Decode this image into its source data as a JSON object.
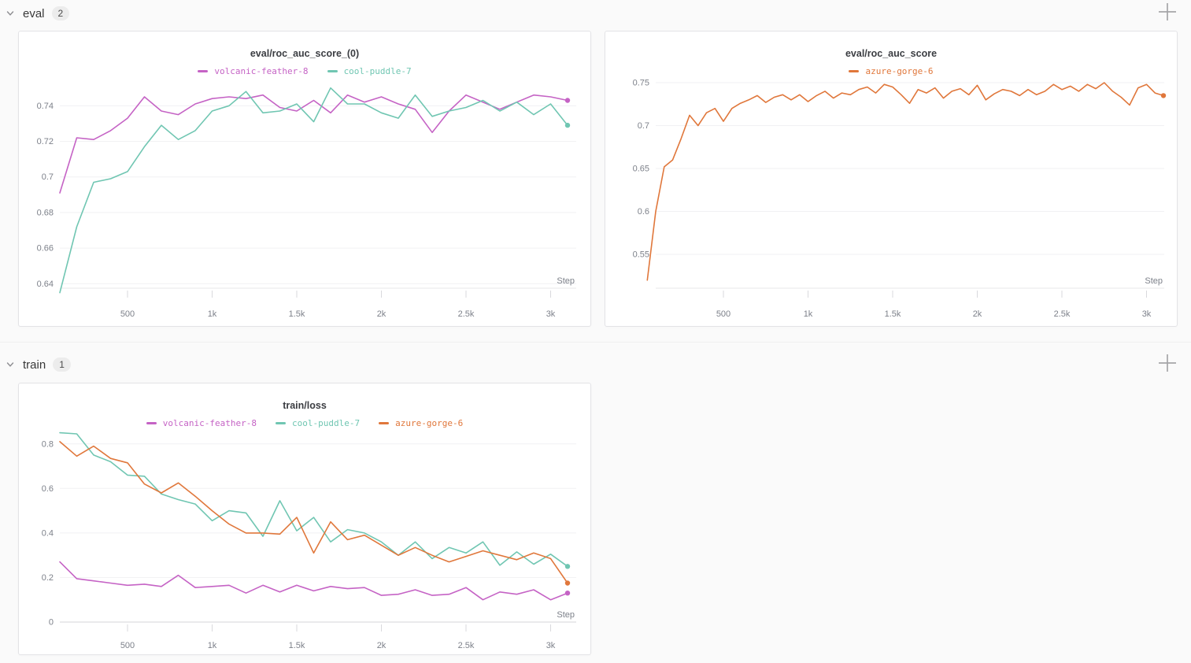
{
  "colors": {
    "background": "#fafafa",
    "panel_border": "#e3e3e6",
    "grid": "#f1f1f3",
    "axis": "#e7e7ea",
    "zero_axis": "#d5d5d9",
    "tick_label": "#7d818a",
    "title_text": "#3b3d42",
    "section_text": "#383838",
    "badge_bg": "#ececec",
    "plus_icon": "#a5a5a8",
    "run_magenta": "#c563c5",
    "run_teal": "#70c6b2",
    "run_orange": "#e0773b"
  },
  "sections": [
    {
      "title": "eval",
      "count": "2"
    },
    {
      "title": "train",
      "count": "1"
    }
  ],
  "runs": [
    {
      "name": "volcanic-feather-8",
      "color": "#c563c5"
    },
    {
      "name": "cool-puddle-7",
      "color": "#70c6b2"
    },
    {
      "name": "azure-gorge-6",
      "color": "#e0773b"
    }
  ],
  "chart_data": [
    {
      "type": "line",
      "title": "eval/roc_auc_score_(0)",
      "xlabel": "Step",
      "legend_position": "top-center",
      "grid": "horizontal-only",
      "xlim": [
        100,
        3150
      ],
      "ylim": [
        0.6375,
        0.7525
      ],
      "x_ticks": [
        {
          "label": "500",
          "value": 500
        },
        {
          "label": "1k",
          "value": 1000
        },
        {
          "label": "1.5k",
          "value": 1500
        },
        {
          "label": "2k",
          "value": 2000
        },
        {
          "label": "2.5k",
          "value": 2500
        },
        {
          "label": "3k",
          "value": 3000
        }
      ],
      "y_ticks": [
        {
          "label": "0.74",
          "value": 0.74
        },
        {
          "label": "0.72",
          "value": 0.72
        },
        {
          "label": "0.7",
          "value": 0.7
        },
        {
          "label": "0.68",
          "value": 0.68
        },
        {
          "label": "0.66",
          "value": 0.66
        },
        {
          "label": "0.64",
          "value": 0.64
        }
      ],
      "series": [
        {
          "name": "volcanic-feather-8",
          "color": "#c563c5",
          "x_start": 100,
          "x_step": 100,
          "end_dot": true,
          "values": [
            0.691,
            0.722,
            0.721,
            0.726,
            0.733,
            0.745,
            0.737,
            0.735,
            0.741,
            0.744,
            0.745,
            0.744,
            0.746,
            0.739,
            0.737,
            0.743,
            0.736,
            0.746,
            0.742,
            0.745,
            0.741,
            0.738,
            0.725,
            0.737,
            0.746,
            0.742,
            0.738,
            0.742,
            0.746,
            0.745,
            0.743
          ]
        },
        {
          "name": "cool-puddle-7",
          "color": "#70c6b2",
          "x_start": 100,
          "x_step": 100,
          "end_dot": true,
          "values": [
            0.635,
            0.672,
            0.697,
            0.699,
            0.703,
            0.717,
            0.729,
            0.721,
            0.726,
            0.737,
            0.74,
            0.748,
            0.736,
            0.737,
            0.741,
            0.731,
            0.75,
            0.741,
            0.741,
            0.736,
            0.733,
            0.746,
            0.734,
            0.737,
            0.739,
            0.743,
            0.737,
            0.742,
            0.735,
            0.741,
            0.729
          ]
        }
      ]
    },
    {
      "type": "line",
      "title": "eval/roc_auc_score",
      "xlabel": "Step",
      "legend_position": "top-center",
      "grid": "horizontal-only",
      "xlim": [
        50,
        3150
      ],
      "ylim": [
        0.5106,
        0.7546
      ],
      "x_ticks": [
        {
          "label": "500",
          "value": 500
        },
        {
          "label": "1k",
          "value": 1000
        },
        {
          "label": "1.5k",
          "value": 1500
        },
        {
          "label": "2k",
          "value": 2000
        },
        {
          "label": "2.5k",
          "value": 2500
        },
        {
          "label": "3k",
          "value": 3000
        }
      ],
      "y_ticks": [
        {
          "label": "0.75",
          "value": 0.75
        },
        {
          "label": "0.7",
          "value": 0.7
        },
        {
          "label": "0.65",
          "value": 0.65
        },
        {
          "label": "0.6",
          "value": 0.6
        },
        {
          "label": "0.55",
          "value": 0.55
        }
      ],
      "series": [
        {
          "name": "azure-gorge-6",
          "color": "#e0773b",
          "x_start": 50,
          "x_step": 50,
          "end_dot": true,
          "values": [
            0.52,
            0.6,
            0.652,
            0.66,
            0.685,
            0.712,
            0.7,
            0.715,
            0.72,
            0.705,
            0.72,
            0.726,
            0.73,
            0.735,
            0.727,
            0.733,
            0.736,
            0.73,
            0.736,
            0.728,
            0.735,
            0.74,
            0.732,
            0.738,
            0.736,
            0.742,
            0.745,
            0.738,
            0.748,
            0.745,
            0.736,
            0.726,
            0.742,
            0.738,
            0.744,
            0.732,
            0.74,
            0.743,
            0.736,
            0.747,
            0.73,
            0.737,
            0.742,
            0.74,
            0.735,
            0.742,
            0.736,
            0.74,
            0.748,
            0.742,
            0.746,
            0.74,
            0.748,
            0.743,
            0.75,
            0.74,
            0.733,
            0.724,
            0.744,
            0.748,
            0.738,
            0.735
          ]
        }
      ]
    },
    {
      "type": "line",
      "title": "train/loss",
      "xlabel": "Step",
      "legend_position": "top-center",
      "grid": "horizontal-only",
      "xlim": [
        100,
        3150
      ],
      "ylim": [
        0,
        0.877
      ],
      "x_ticks": [
        {
          "label": "500",
          "value": 500
        },
        {
          "label": "1k",
          "value": 1000
        },
        {
          "label": "1.5k",
          "value": 1500
        },
        {
          "label": "2k",
          "value": 2000
        },
        {
          "label": "2.5k",
          "value": 2500
        },
        {
          "label": "3k",
          "value": 3000
        }
      ],
      "y_ticks": [
        {
          "label": "0.8",
          "value": 0.8
        },
        {
          "label": "0.6",
          "value": 0.6
        },
        {
          "label": "0.4",
          "value": 0.4
        },
        {
          "label": "0.2",
          "value": 0.2
        },
        {
          "label": "0",
          "value": 0
        }
      ],
      "series": [
        {
          "name": "volcanic-feather-8",
          "color": "#c563c5",
          "x_start": 100,
          "x_step": 100,
          "end_dot": true,
          "values": [
            0.27,
            0.195,
            0.185,
            0.175,
            0.165,
            0.17,
            0.16,
            0.21,
            0.155,
            0.16,
            0.165,
            0.13,
            0.165,
            0.135,
            0.165,
            0.14,
            0.16,
            0.15,
            0.155,
            0.12,
            0.125,
            0.145,
            0.12,
            0.125,
            0.155,
            0.1,
            0.135,
            0.125,
            0.145,
            0.1,
            0.13
          ]
        },
        {
          "name": "cool-puddle-7",
          "color": "#70c6b2",
          "x_start": 100,
          "x_step": 100,
          "end_dot": true,
          "values": [
            0.85,
            0.845,
            0.75,
            0.72,
            0.66,
            0.655,
            0.575,
            0.55,
            0.53,
            0.455,
            0.5,
            0.49,
            0.385,
            0.545,
            0.41,
            0.47,
            0.36,
            0.415,
            0.4,
            0.36,
            0.3,
            0.36,
            0.285,
            0.335,
            0.31,
            0.36,
            0.255,
            0.315,
            0.26,
            0.305,
            0.25
          ]
        },
        {
          "name": "azure-gorge-6",
          "color": "#e0773b",
          "x_start": 100,
          "x_step": 100,
          "end_dot": true,
          "values": [
            0.81,
            0.745,
            0.79,
            0.735,
            0.715,
            0.62,
            0.58,
            0.625,
            0.565,
            0.5,
            0.44,
            0.4,
            0.4,
            0.395,
            0.47,
            0.31,
            0.45,
            0.37,
            0.39,
            0.345,
            0.3,
            0.335,
            0.3,
            0.27,
            0.295,
            0.32,
            0.3,
            0.28,
            0.31,
            0.285,
            0.175
          ]
        }
      ]
    }
  ]
}
